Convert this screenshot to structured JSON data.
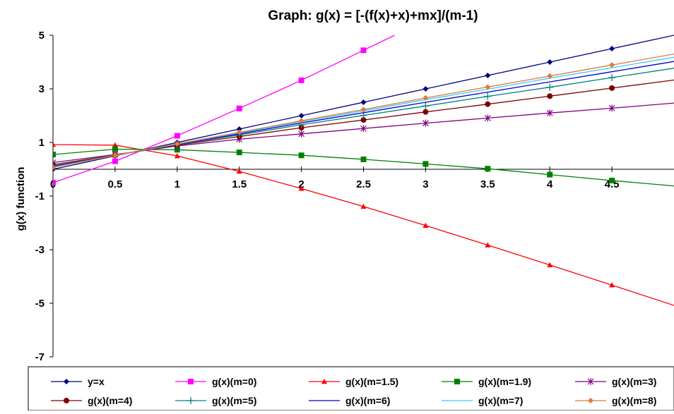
{
  "chart_data": {
    "type": "line",
    "title": "Graph: g(x) = [-(f(x)+x)+mx]/(m-1)",
    "ylabel": "g(x) function",
    "xlabel": "",
    "xlim": [
      0,
      5
    ],
    "ylim": [
      -7,
      5
    ],
    "x_ticks": [
      "0",
      "0.5",
      "1",
      "1.5",
      "2",
      "2.5",
      "3",
      "3.5",
      "4",
      "4.5"
    ],
    "y_ticks": [
      "5",
      "3",
      "1",
      "-1",
      "-3",
      "-5",
      "-7"
    ],
    "grid": false,
    "legend_position": "bottom",
    "series": [
      {
        "name": "y=x",
        "color": "#000080",
        "marker": "diamond",
        "x": [
          0,
          0.5,
          1,
          1.5,
          2,
          2.5,
          3,
          3.5,
          4,
          4.5
        ],
        "y": [
          0,
          0.5,
          1,
          1.5,
          2,
          2.5,
          3,
          3.5,
          4,
          4.5
        ],
        "line_end": [
          5,
          5
        ]
      },
      {
        "name": "g(x)(m=0)",
        "color": "#ff00ff",
        "marker": "square",
        "x": [
          0,
          0.5,
          1,
          1.5,
          2,
          2.5
        ],
        "y": [
          -0.5,
          0.3,
          1.25,
          2.27,
          3.32,
          4.44
        ],
        "line_end": [
          2.75,
          5
        ]
      },
      {
        "name": "g(x)(m=1.5)",
        "color": "#ff0000",
        "marker": "triangle",
        "x": [
          0,
          0.5,
          1,
          1.5,
          2,
          2.5,
          3,
          3.5,
          4,
          4.5
        ],
        "y": [
          0.92,
          0.9,
          0.5,
          -0.08,
          -0.72,
          -1.39,
          -2.1,
          -2.83,
          -3.57,
          -4.32
        ],
        "line_end": [
          5,
          -5.08
        ]
      },
      {
        "name": "g(x)(m=1.9)",
        "color": "#008000",
        "marker": "square",
        "x": [
          0,
          0.5,
          1,
          1.5,
          2,
          2.5,
          3,
          3.5,
          4,
          4.5
        ],
        "y": [
          0.55,
          0.75,
          0.73,
          0.63,
          0.52,
          0.37,
          0.2,
          0.02,
          -0.2,
          -0.42
        ],
        "line_end": [
          5,
          -0.62
        ]
      },
      {
        "name": "g(x)(m=3)",
        "color": "#800080",
        "marker": "asterisk",
        "x": [
          0,
          0.5,
          1,
          1.5,
          2,
          2.5,
          3,
          3.5,
          4,
          4.5
        ],
        "y": [
          0.25,
          0.55,
          0.87,
          1.12,
          1.32,
          1.52,
          1.72,
          1.91,
          2.1,
          2.28
        ],
        "line_end": [
          5,
          2.47
        ]
      },
      {
        "name": "g(x)(m=4)",
        "color": "#800000",
        "marker": "circle",
        "x": [
          0,
          0.5,
          1,
          1.5,
          2,
          2.5,
          3,
          3.5,
          4,
          4.5
        ],
        "y": [
          0.17,
          0.53,
          0.9,
          1.22,
          1.55,
          1.84,
          2.14,
          2.43,
          2.73,
          3.03
        ],
        "line_end": [
          5,
          3.33
        ]
      },
      {
        "name": "g(x)(m=5)",
        "color": "#008080",
        "marker": "plus",
        "x": [
          0,
          0.5,
          1,
          1.5,
          2,
          2.5,
          3,
          3.5,
          4,
          4.5
        ],
        "y": [
          0.13,
          0.52,
          0.92,
          1.28,
          1.66,
          2.01,
          2.36,
          2.72,
          3.06,
          3.42
        ],
        "line_end": [
          5,
          3.77
        ]
      },
      {
        "name": "g(x)(m=6)",
        "color": "#0000cd",
        "marker": "none",
        "x": [
          0,
          0.5,
          1,
          1.5,
          2,
          2.5,
          3,
          3.5,
          4,
          4.5
        ],
        "y": [
          0.1,
          0.52,
          0.93,
          1.32,
          1.73,
          2.11,
          2.5,
          2.88,
          3.26,
          3.64
        ],
        "line_end": [
          5,
          4.02
        ]
      },
      {
        "name": "g(x)(m=7)",
        "color": "#33ccff",
        "marker": "none",
        "x": [
          0,
          0.5,
          1,
          1.5,
          2,
          2.5,
          3,
          3.5,
          4,
          4.5
        ],
        "y": [
          0.08,
          0.52,
          0.94,
          1.36,
          1.78,
          2.18,
          2.6,
          2.99,
          3.4,
          3.79
        ],
        "line_end": [
          5,
          4.18
        ]
      },
      {
        "name": "g(x)(m=8)",
        "color": "#e07b39",
        "marker": "diamond",
        "x": [
          0,
          0.5,
          1,
          1.5,
          2,
          2.5,
          3,
          3.5,
          4,
          4.5
        ],
        "y": [
          0.07,
          0.52,
          0.95,
          1.38,
          1.81,
          2.23,
          2.66,
          3.07,
          3.48,
          3.89
        ],
        "line_end": [
          5,
          4.3
        ]
      }
    ]
  }
}
